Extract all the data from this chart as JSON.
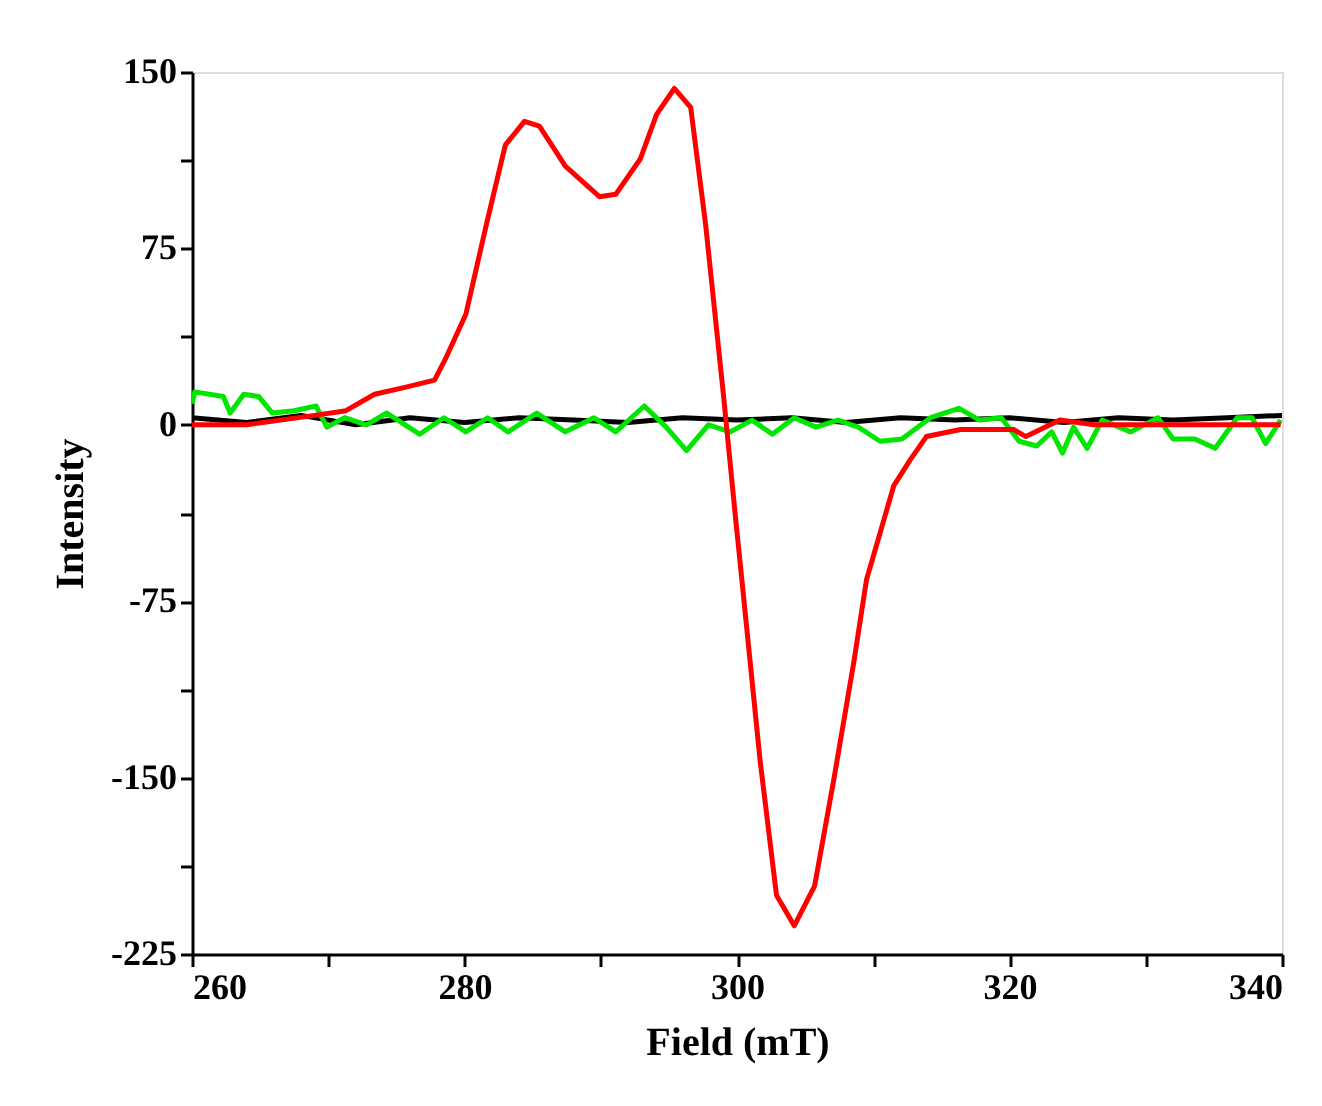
{
  "chart_data": {
    "type": "line",
    "xlabel": "Field (mT)",
    "ylabel": "Intensity",
    "xlim": [
      260,
      340
    ],
    "ylim": [
      -225,
      150
    ],
    "xticks": [
      260,
      {
        "value": 270,
        "label": null
      },
      280,
      {
        "value": 290,
        "label": null
      },
      300,
      {
        "value": 310,
        "label": null
      },
      320,
      {
        "value": 330,
        "label": null
      },
      340
    ],
    "yticks": [
      -225,
      {
        "value": -187.5,
        "label": null
      },
      -150,
      {
        "value": -112.5,
        "label": null
      },
      -75,
      {
        "value": -37.5,
        "label": null
      },
      0,
      {
        "value": 37.5,
        "label": null
      },
      75,
      {
        "value": 112.5,
        "label": null
      },
      150
    ],
    "grid": false,
    "marker": "none",
    "line_style": "solid",
    "series": [
      {
        "color": "#000000",
        "x": [
          260,
          264,
          268,
          272,
          276,
          280,
          284,
          288,
          292,
          296,
          300,
          304,
          308,
          312,
          316,
          320,
          324,
          328,
          332,
          336,
          340
        ],
        "values": [
          3,
          1,
          4,
          0,
          3,
          1,
          3,
          2,
          1,
          3,
          2,
          3,
          1,
          3,
          2,
          3,
          1,
          3,
          2,
          3,
          4
        ]
      },
      {
        "color": "#00e600",
        "x": [
          260,
          260.2,
          262.3,
          262.8,
          263.8,
          264.9,
          265.9,
          267.5,
          269.1,
          269.9,
          271.2,
          272.8,
          274.3,
          276.7,
          278.5,
          280.1,
          281.7,
          283.2,
          285.3,
          287.4,
          289.5,
          291.1,
          293.2,
          294.8,
          296.3,
          297.9,
          299.5,
          301.1,
          302.6,
          304.2,
          305.8,
          307.4,
          308.9,
          310.5,
          312.1,
          314.2,
          316.3,
          317.8,
          319.4,
          320.7,
          322.0,
          323.1,
          323.9,
          324.7,
          325.7,
          326.8,
          328.9,
          330.9,
          332.0,
          333.6,
          335.1,
          336.7,
          337.8,
          338.8,
          339.9
        ],
        "values": [
          9,
          14,
          12,
          5,
          13,
          12,
          5,
          6,
          8,
          -1,
          3,
          0,
          5,
          -4,
          3,
          -3,
          3,
          -3,
          5,
          -3,
          3,
          -3,
          8,
          -1,
          -11,
          0,
          -3,
          2,
          -4,
          3,
          -1,
          2,
          -1,
          -7,
          -6,
          3,
          7,
          2,
          3,
          -7,
          -9,
          -3,
          -12,
          -1,
          -10,
          2,
          -3,
          3,
          -6,
          -6,
          -10,
          3,
          3,
          -8,
          2
        ]
      },
      {
        "color": "#ff0000",
        "x": [
          260,
          264.0,
          269.0,
          271.3,
          273.4,
          275.7,
          277.8,
          278.6,
          280.1,
          281.6,
          283.0,
          284.4,
          285.5,
          287.4,
          289.9,
          291.1,
          292.9,
          294.1,
          295.4,
          296.6,
          297.7,
          299.0,
          299.9,
          300.2,
          301.7,
          302.9,
          304.2,
          305.7,
          307.1,
          308.6,
          309.5,
          311.5,
          312.7,
          313.9,
          316.4,
          320.3,
          321.2,
          323.7,
          326.2,
          331.0,
          339.9
        ],
        "values": [
          0,
          0,
          4,
          6,
          13,
          16,
          19,
          28,
          47,
          85,
          119,
          129,
          127,
          110,
          97,
          98,
          113,
          132,
          143,
          135,
          85,
          13,
          -40,
          -57,
          -143,
          -200,
          -213,
          -196,
          -151,
          -100,
          -66,
          -26,
          -15,
          -5,
          -2,
          -2,
          -5,
          2,
          0,
          0,
          0
        ]
      }
    ]
  }
}
